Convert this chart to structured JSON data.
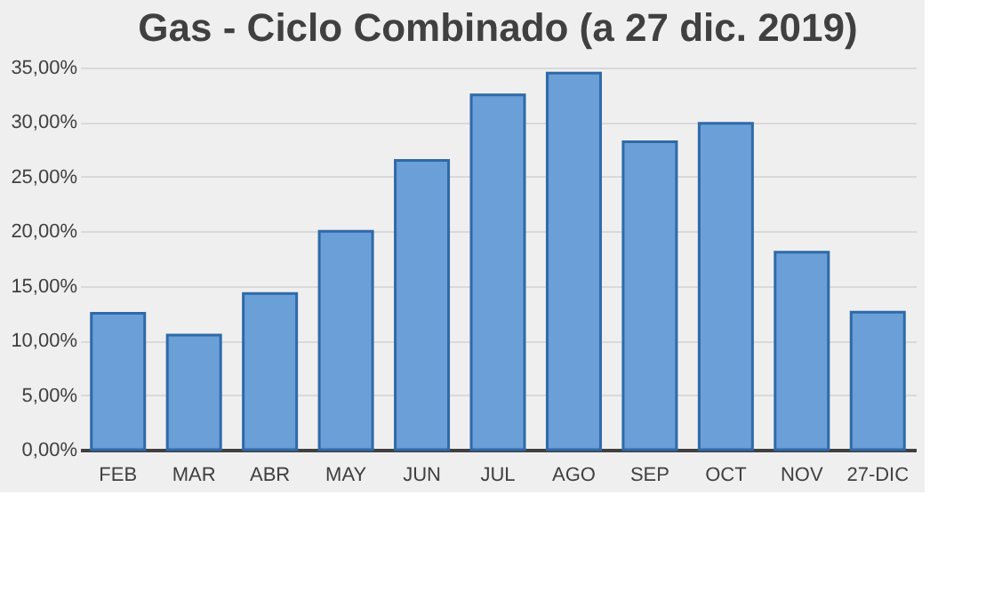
{
  "chart_data": {
    "type": "bar",
    "title": "Gas - Ciclo Combinado (a 27 dic. 2019)",
    "categories": [
      "FEB",
      "MAR",
      "ABR",
      "MAY",
      "JUN",
      "JUL",
      "AGO",
      "SEP",
      "OCT",
      "NOV",
      "27-DIC"
    ],
    "values": [
      12.5,
      10.5,
      14.3,
      20,
      26.5,
      32.5,
      34.5,
      28.2,
      29.9,
      18.1,
      12.6
    ],
    "color": "#6a9fd8",
    "ylim": [
      0,
      35
    ],
    "yticks": [
      {
        "value": 0,
        "label": "0,00%"
      },
      {
        "value": 5,
        "label": "5,00%"
      },
      {
        "value": 10,
        "label": "10,00%"
      },
      {
        "value": 15,
        "label": "15,00%"
      },
      {
        "value": 20,
        "label": "20,00%"
      },
      {
        "value": 25,
        "label": "25,00%"
      },
      {
        "value": 30,
        "label": "30,00%"
      },
      {
        "value": 35,
        "label": "35,00%"
      }
    ],
    "grid": "y"
  }
}
